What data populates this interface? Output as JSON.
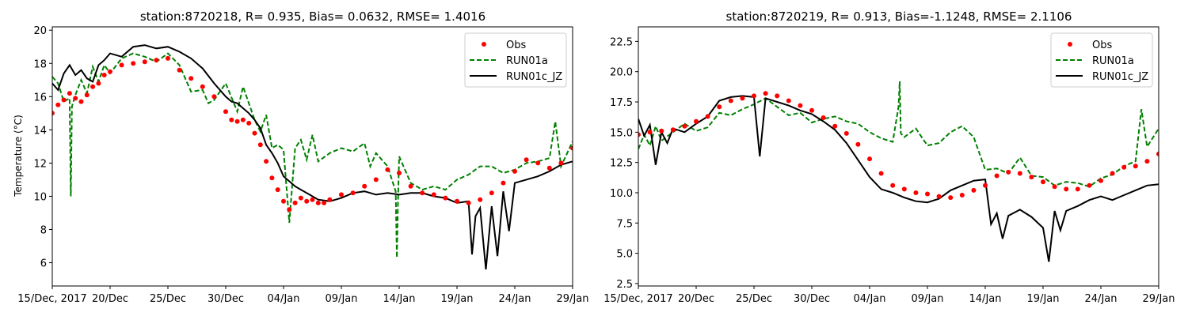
{
  "chart_data": [
    {
      "type": "line",
      "title": "station:8720218, R= 0.935, Bias= 0.0632, RMSE= 1.4016",
      "xlabel": "",
      "ylabel": "Temperature ($^\\circ$C)",
      "ylabel_display": "Temperature (°C)",
      "x_ticks": [
        "15/Dec, 2017",
        "20/Dec",
        "25/Dec",
        "30/Dec",
        "04/Jan",
        "09/Jan",
        "14/Jan",
        "19/Jan",
        "24/Jan",
        "29/Jan"
      ],
      "x_unit": "day since 15/Dec/2017",
      "xlim": [
        0,
        45
      ],
      "ylim": [
        4.6,
        20.2
      ],
      "y_ticks": [
        "6",
        "8",
        "10",
        "12",
        "14",
        "16",
        "18",
        "20"
      ],
      "y_tick_values": [
        6,
        8,
        10,
        12,
        14,
        16,
        18,
        20
      ],
      "grid": false,
      "legend": {
        "position": "top-right",
        "entries": [
          "Obs",
          "RUN01a",
          "RUN01c_JZ"
        ]
      },
      "series": [
        {
          "name": "Obs",
          "style": "dots",
          "color": "#ff0000",
          "x": [
            0,
            0.5,
            1,
            1.5,
            2,
            2.5,
            3,
            3.5,
            4,
            4.5,
            5,
            6,
            7,
            8,
            9,
            10,
            11,
            12,
            13,
            14,
            15,
            15.5,
            16,
            16.5,
            17,
            17.5,
            18,
            18.5,
            19,
            19.5,
            20,
            20.5,
            21,
            21.5,
            22,
            22.5,
            23,
            23.5,
            24,
            25,
            26,
            27,
            28,
            29,
            30,
            31,
            32,
            33,
            34,
            35,
            36,
            37,
            38,
            39,
            40,
            41,
            42,
            43,
            44,
            45
          ],
          "y": [
            15.0,
            15.5,
            15.8,
            16.2,
            15.9,
            15.7,
            16.1,
            16.6,
            16.8,
            17.3,
            17.5,
            17.9,
            18.0,
            18.1,
            18.2,
            18.3,
            17.6,
            17.1,
            16.6,
            16.0,
            15.1,
            14.6,
            14.5,
            14.6,
            14.4,
            13.8,
            13.1,
            12.1,
            11.1,
            10.4,
            9.7,
            9.2,
            9.6,
            9.9,
            9.7,
            9.8,
            9.6,
            9.6,
            9.8,
            10.1,
            10.2,
            10.6,
            11.0,
            11.6,
            11.4,
            10.6,
            10.2,
            10.1,
            9.9,
            9.7,
            9.6,
            9.8,
            10.2,
            10.8,
            11.5,
            12.2,
            12.0,
            11.7,
            12.0,
            12.9
          ]
        },
        {
          "name": "RUN01a",
          "style": "dashed",
          "color": "#008000",
          "x": [
            0,
            0.5,
            1,
            1.5,
            1.6,
            1.7,
            2,
            2.5,
            3,
            3.5,
            4,
            4.5,
            5,
            6,
            7,
            8,
            9,
            10,
            11,
            12,
            13,
            13.5,
            14,
            15,
            16,
            16.5,
            17,
            17.5,
            18,
            18.5,
            19,
            19.5,
            20,
            20.5,
            21,
            21.5,
            22,
            22.5,
            23,
            24,
            25,
            26,
            27,
            27.5,
            28,
            29,
            29.7,
            29.8,
            29.9,
            30,
            31,
            32,
            33,
            34,
            35,
            36,
            37,
            38,
            39,
            40,
            41,
            42,
            43,
            43.5,
            44,
            45
          ],
          "y": [
            17.2,
            16.8,
            15.7,
            15.9,
            10.0,
            15.4,
            16.1,
            17.0,
            16.2,
            17.8,
            16.9,
            17.9,
            17.4,
            18.3,
            18.6,
            18.4,
            18.1,
            18.6,
            17.9,
            16.3,
            16.4,
            15.6,
            15.8,
            16.8,
            15.1,
            16.6,
            15.6,
            14.6,
            13.9,
            14.9,
            12.9,
            13.1,
            12.8,
            8.4,
            12.9,
            13.4,
            12.2,
            13.7,
            12.1,
            12.6,
            12.9,
            12.7,
            13.2,
            11.8,
            12.6,
            11.8,
            10.3,
            6.3,
            9.7,
            12.4,
            10.8,
            10.4,
            10.6,
            10.4,
            11.0,
            11.3,
            11.8,
            11.8,
            11.4,
            11.6,
            12.0,
            12.1,
            12.3,
            14.5,
            11.8,
            13.3
          ]
        },
        {
          "name": "RUN01c_JZ",
          "style": "solid",
          "color": "#000000",
          "x": [
            0,
            0.5,
            1,
            1.5,
            2,
            2.5,
            3,
            3.5,
            4,
            4.5,
            5,
            6,
            7,
            8,
            9,
            10,
            11,
            12,
            13,
            14,
            15,
            15.5,
            16,
            16.5,
            17,
            17.5,
            18,
            18.5,
            19,
            19.5,
            20,
            20.5,
            21,
            21.5,
            22,
            22.5,
            23,
            24,
            25,
            26,
            27,
            28,
            29,
            30,
            31,
            32,
            33,
            34,
            35,
            36,
            36.3,
            36.6,
            37,
            37.5,
            38,
            38.5,
            39,
            39.5,
            40,
            41,
            42,
            43,
            44,
            45
          ],
          "y": [
            16.8,
            16.4,
            17.4,
            17.9,
            17.3,
            17.6,
            17.1,
            16.9,
            17.9,
            18.2,
            18.6,
            18.4,
            19.0,
            19.1,
            18.9,
            19.0,
            18.7,
            18.3,
            17.7,
            16.8,
            16.0,
            15.7,
            15.6,
            15.3,
            15.0,
            14.6,
            14.1,
            13.1,
            12.6,
            12.0,
            11.2,
            10.9,
            10.6,
            10.4,
            10.2,
            10.0,
            9.8,
            9.7,
            9.9,
            10.2,
            10.3,
            10.1,
            10.2,
            10.1,
            10.2,
            10.2,
            10.0,
            9.9,
            9.6,
            9.7,
            6.5,
            8.8,
            9.3,
            5.6,
            9.4,
            6.4,
            10.3,
            7.9,
            10.8,
            11.0,
            11.2,
            11.5,
            11.9,
            12.1
          ]
        }
      ]
    },
    {
      "type": "line",
      "title": "station:8720219, R= 0.913, Bias=-1.1248, RMSE= 2.1106",
      "xlabel": "",
      "ylabel": "",
      "x_ticks": [
        "15/Dec, 2017",
        "20/Dec",
        "25/Dec",
        "30/Dec",
        "04/Jan",
        "09/Jan",
        "14/Jan",
        "19/Jan",
        "24/Jan",
        "29/Jan"
      ],
      "x_unit": "day since 15/Dec/2017",
      "xlim": [
        0,
        45
      ],
      "ylim": [
        2.3,
        23.7
      ],
      "y_ticks": [
        "2.5",
        "5.0",
        "7.5",
        "10.0",
        "12.5",
        "15.0",
        "17.5",
        "20.0",
        "22.5"
      ],
      "y_tick_values": [
        2.5,
        5.0,
        7.5,
        10.0,
        12.5,
        15.0,
        17.5,
        20.0,
        22.5
      ],
      "grid": false,
      "legend": {
        "position": "top-right",
        "entries": [
          "Obs",
          "RUN01a",
          "RUN01c_JZ"
        ]
      },
      "series": [
        {
          "name": "Obs",
          "style": "dots",
          "color": "#ff0000",
          "x": [
            0,
            1,
            2,
            3,
            4,
            5,
            6,
            7,
            8,
            9,
            10,
            11,
            12,
            13,
            14,
            15,
            16,
            17,
            18,
            19,
            20,
            21,
            22,
            23,
            24,
            25,
            26,
            27,
            28,
            29,
            30,
            31,
            32,
            33,
            34,
            35,
            36,
            37,
            38,
            39,
            40,
            41,
            42,
            43,
            44,
            45
          ],
          "y": [
            14.8,
            15.0,
            15.1,
            15.2,
            15.5,
            15.9,
            16.3,
            17.1,
            17.6,
            17.8,
            18.0,
            18.2,
            18.0,
            17.6,
            17.2,
            16.8,
            16.2,
            15.5,
            14.9,
            14.0,
            12.8,
            11.6,
            10.6,
            10.3,
            10.0,
            9.9,
            9.7,
            9.6,
            9.8,
            10.2,
            10.6,
            11.4,
            11.7,
            11.6,
            11.3,
            10.9,
            10.5,
            10.3,
            10.3,
            10.6,
            11.0,
            11.6,
            12.1,
            12.2,
            12.6,
            13.2
          ]
        },
        {
          "name": "RUN01a",
          "style": "dashed",
          "color": "#008000",
          "x": [
            0,
            0.5,
            1,
            1.5,
            2,
            3,
            4,
            5,
            6,
            7,
            8,
            9,
            10,
            11,
            12,
            13,
            14,
            15,
            16,
            17,
            18,
            19,
            20,
            21,
            22,
            22.5,
            22.6,
            22.7,
            23,
            24,
            25,
            26,
            27,
            28,
            29,
            30,
            31,
            32,
            33,
            34,
            35,
            36,
            37,
            38,
            39,
            40,
            41,
            42,
            43,
            43.5,
            44,
            45
          ],
          "y": [
            13.6,
            14.8,
            13.9,
            15.5,
            14.3,
            15.0,
            15.7,
            15.1,
            15.4,
            16.6,
            16.4,
            16.9,
            17.3,
            17.8,
            17.1,
            16.4,
            16.6,
            15.8,
            16.1,
            16.3,
            15.9,
            15.7,
            15.0,
            14.5,
            14.2,
            17.1,
            19.2,
            14.9,
            14.6,
            15.3,
            13.9,
            14.1,
            15.0,
            15.5,
            14.6,
            11.9,
            12.0,
            11.6,
            12.9,
            11.4,
            11.3,
            10.6,
            10.9,
            10.8,
            10.5,
            11.2,
            11.5,
            12.2,
            12.6,
            16.9,
            13.8,
            15.3
          ]
        },
        {
          "name": "RUN01c_JZ",
          "style": "solid",
          "color": "#000000",
          "x": [
            0,
            0.5,
            1,
            1.5,
            2,
            2.5,
            3,
            4,
            5,
            6,
            7,
            8,
            9,
            10,
            10.5,
            11,
            12,
            13,
            14,
            15,
            16,
            17,
            18,
            19,
            20,
            21,
            22,
            23,
            24,
            25,
            26,
            27,
            28,
            29,
            30,
            30.5,
            31,
            31.5,
            32,
            33,
            34,
            35,
            35.5,
            36,
            36.5,
            37,
            38,
            39,
            40,
            41,
            42,
            43,
            44,
            45
          ],
          "y": [
            16.1,
            14.7,
            15.6,
            12.3,
            15.0,
            14.1,
            15.3,
            15.0,
            15.7,
            16.3,
            17.6,
            17.9,
            18.0,
            17.9,
            13.0,
            17.8,
            17.5,
            17.2,
            16.8,
            16.5,
            15.9,
            15.2,
            14.1,
            12.7,
            11.3,
            10.3,
            10.0,
            9.6,
            9.3,
            9.2,
            9.5,
            10.2,
            10.6,
            11.0,
            11.1,
            7.4,
            8.3,
            6.2,
            8.1,
            8.6,
            8.0,
            7.1,
            4.3,
            8.5,
            6.9,
            8.5,
            8.9,
            9.4,
            9.7,
            9.4,
            9.8,
            10.2,
            10.6,
            10.7
          ]
        }
      ]
    }
  ]
}
